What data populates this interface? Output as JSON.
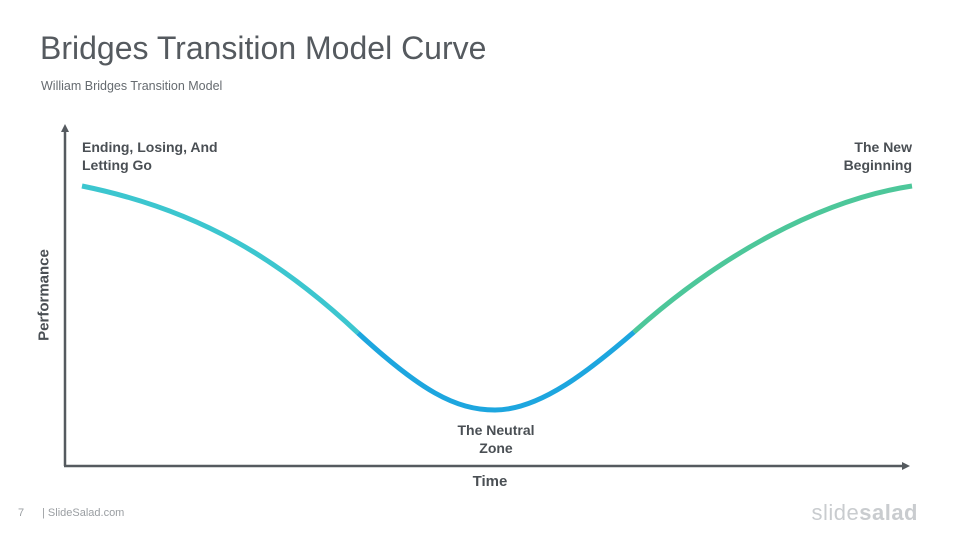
{
  "slide": {
    "title": "Bridges Transition Model Curve",
    "subtitle": "William Bridges Transition Model",
    "page_number": "7",
    "footer": "| SlideSalad.com",
    "logo_part1": "slide",
    "logo_part2": "salad"
  },
  "diagram": {
    "x_axis_label": "Time",
    "y_axis_label": "Performance",
    "stages": [
      {
        "line1": "Ending, Losing, And",
        "line2": "Letting Go",
        "color": "#3cc6cf"
      },
      {
        "line1": "The Neutral",
        "line2": "Zone",
        "color": "#1da6df"
      },
      {
        "line1": "The New",
        "line2": "Beginning",
        "color": "#4dc79a"
      }
    ],
    "axis_color": "#555a5f"
  }
}
